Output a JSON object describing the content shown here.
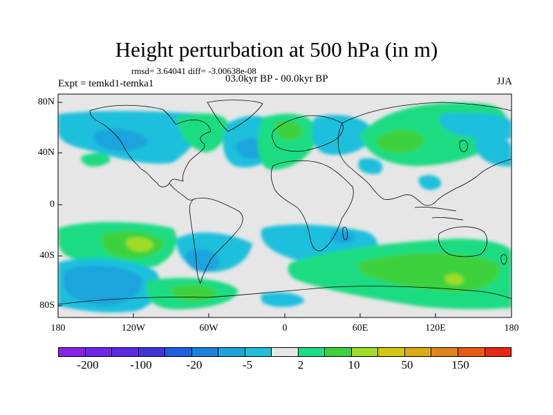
{
  "title": "Height perturbation at 500 hPa (in m)",
  "stats": "rmsd= 3.64041 diff= -3.00638e-08",
  "period": "03.0kyr BP - 00.0kyr BP",
  "experiment": "Expt = temkd1-temka1",
  "season": "JJA",
  "lat_ticks": [
    "80N",
    "40N",
    "0",
    "40S",
    "80S"
  ],
  "lon_ticks": [
    "180",
    "120W",
    "60W",
    "0",
    "60E",
    "120E",
    "180"
  ],
  "colorbar": {
    "colors": [
      "#8c1ee6",
      "#6e26e6",
      "#5a2ae0",
      "#3c34d8",
      "#1e5fdc",
      "#1a82dc",
      "#1ea4dc",
      "#1ec0dc",
      "#e6e6e6",
      "#1edc82",
      "#3cd23c",
      "#a0dc28",
      "#d2c814",
      "#dcaa14",
      "#e0821e",
      "#e65a14",
      "#e62814"
    ],
    "labels": [
      "-200",
      "-100",
      "-20",
      "-5",
      "2",
      "10",
      "50",
      "150"
    ]
  },
  "colors": {
    "background": "#e6e6e6",
    "coast": "#000000"
  }
}
